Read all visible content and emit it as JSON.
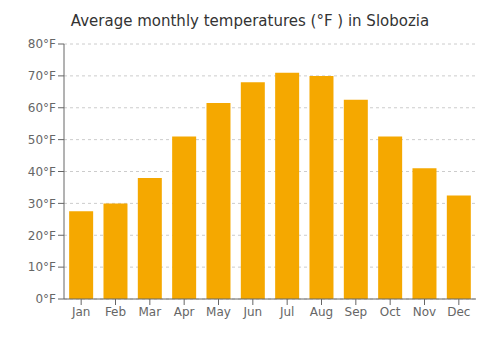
{
  "chart_data": {
    "type": "bar",
    "title": "Average monthly temperatures (°F ) in Slobozia",
    "categories": [
      "Jan",
      "Feb",
      "Mar",
      "Apr",
      "May",
      "Jun",
      "Jul",
      "Aug",
      "Sep",
      "Oct",
      "Nov",
      "Dec"
    ],
    "values": [
      27.5,
      30.0,
      38.0,
      51.0,
      61.5,
      68.0,
      71.0,
      70.0,
      62.5,
      51.0,
      41.0,
      32.5
    ],
    "color": "#F5A800",
    "ylim": [
      0,
      80
    ],
    "yticks": [
      {
        "value": 0,
        "label": "0°F"
      },
      {
        "value": 10,
        "label": "10°F"
      },
      {
        "value": 20,
        "label": "20°F"
      },
      {
        "value": 30,
        "label": "30°F"
      },
      {
        "value": 40,
        "label": "40°F"
      },
      {
        "value": 50,
        "label": "50°F"
      },
      {
        "value": 60,
        "label": "60°F"
      },
      {
        "value": 70,
        "label": "70°F"
      },
      {
        "value": 80,
        "label": "80°F"
      }
    ],
    "grid": true
  }
}
